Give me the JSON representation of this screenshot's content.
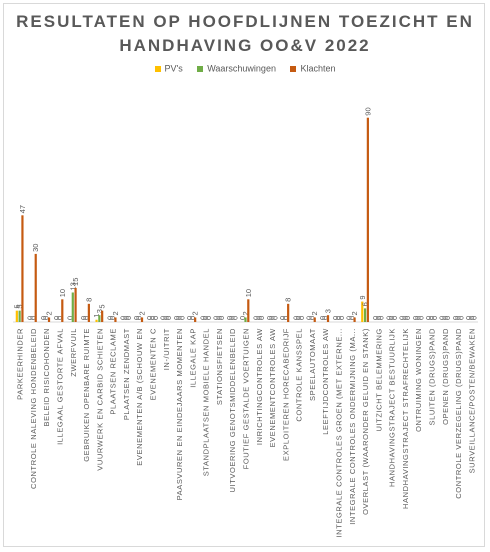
{
  "chart_data": {
    "type": "bar",
    "title_lines": [
      "RESULTATEN OP HOOFDLIJNEN TOEZICHT EN",
      "HANDHAVING OO&V 2022"
    ],
    "xlabel": "",
    "ylabel": "",
    "ylim": [
      0,
      100
    ],
    "grid": false,
    "legend_position": "top",
    "categories": [
      "PARKEERHINDER",
      "CONTROLE NALEVING HONDENBELEID",
      "BELEID RISICOHONDEN",
      "ILLEGAAL GESTORTE AFVAL",
      "ZWERFVUIL",
      "GEBRUIKEN OPENBARE RUIMTE",
      "VUURWERK EN CARBID SCHIETEN",
      "PLAATSEN RECLAME",
      "PLAATSEN ZENDMAST",
      "EVENEMENTEN A/B (SCHOUW EN",
      "EVENEMENTEN C",
      "IN-/UITRIT",
      "PAASVUREN EN EINDEJAARS MOMENTEN",
      "ILLEGALE KAP",
      "STANDPLAATSEN MOBIELE HANDEL",
      "STATIONSFIETSEN",
      "UITVOERING GENOTSMIDDELENBELEID",
      "FOUTIEF GESTALDE VOERTUIGEN",
      "INRICHTINGCONTROLES AW",
      "EVENEMENTCONTROLES AW",
      "EXPLOITEREN HORECABEDRIJF",
      "CONTROLE KANSSPEL",
      "SPEELAUTOMAAT",
      "LEEFTIJDCONTROLES AW",
      "INTEGRALE CONTROLES GROEN (MET EXTERNE...",
      "INTEGRALE CONTROLES ONDERMIJNING (MA...",
      "OVERLAST (WAARONDER GELUID EN STANK)",
      "UITZICHT BELEMMERING",
      "HANDHAVINGSTRAJECT BESTUURLIJK",
      "HANDHAVINGSTRAJECT STRAFRECHTELIJK",
      "ONTRUIMING WONINGEN",
      "SLUITEN (DRUGS)PAND",
      "OPENEN (DRUGS)PAND",
      "CONTROLE VERZEGELING (DRUGS)PAND",
      "SURVEILLANCE/POSTEN/BEWAKEN"
    ],
    "series": [
      {
        "name": "PV's",
        "color": "#ffc000",
        "values": [
          5,
          0,
          0,
          0,
          0,
          0,
          1,
          0,
          0,
          0,
          0,
          0,
          0,
          0,
          0,
          0,
          0,
          0,
          0,
          0,
          0,
          0,
          0,
          0,
          0,
          0,
          9,
          0,
          0,
          0,
          0,
          0,
          0,
          0,
          0
        ]
      },
      {
        "name": "Waarschuwingen",
        "color": "#70ad47",
        "values": [
          5,
          0,
          0,
          0,
          13,
          0,
          3,
          0,
          0,
          0,
          0,
          0,
          0,
          0,
          0,
          0,
          0,
          2,
          0,
          0,
          0,
          0,
          0,
          0,
          0,
          0,
          6,
          0,
          0,
          0,
          0,
          0,
          0,
          0,
          0
        ]
      },
      {
        "name": "Klachten",
        "color": "#c55a11",
        "values": [
          47,
          30,
          2,
          10,
          15,
          8,
          5,
          2,
          0,
          2,
          0,
          0,
          0,
          2,
          0,
          0,
          0,
          10,
          0,
          0,
          8,
          0,
          2,
          3,
          0,
          2,
          90,
          0,
          0,
          0,
          0,
          0,
          0,
          0,
          0
        ]
      }
    ]
  }
}
